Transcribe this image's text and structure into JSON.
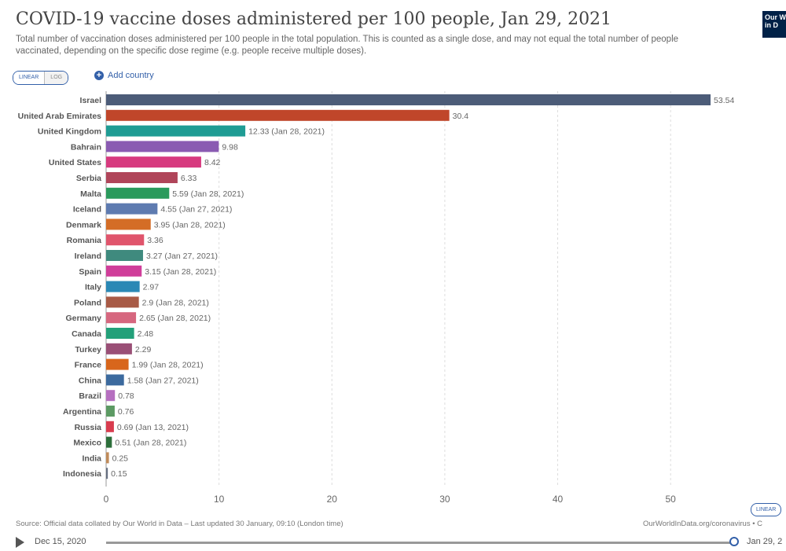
{
  "header": {
    "title": "COVID-19 vaccine doses administered per 100 people, Jan 29, 2021",
    "subtitle": "Total number of vaccination doses administered per 100 people in the total population. This is counted as a single dose, and may not equal the total number of people vaccinated, depending on the specific dose regime (e.g. people receive multiple doses).",
    "logo_line1": "Our W",
    "logo_line2": "in D"
  },
  "controls": {
    "linear_label": "LINEAR",
    "log_label": "LOG",
    "add_country_label": "Add country",
    "scale_button_label": "LINEAR"
  },
  "footer": {
    "source": "Source: Official data collated by Our World in Data – Last updated 30 January, 09:10 (London time)",
    "link": "OurWorldInData.org/coronavirus • C"
  },
  "timeline": {
    "start_date": "Dec 15, 2020",
    "end_date": "Jan 29, 2",
    "position": 1.0
  },
  "chart_data": {
    "type": "bar",
    "orientation": "horizontal",
    "xlim": [
      0,
      55
    ],
    "x_ticks": [
      0,
      10,
      20,
      30,
      40,
      50
    ],
    "grid": true,
    "categories": [
      "Israel",
      "United Arab Emirates",
      "United Kingdom",
      "Bahrain",
      "United States",
      "Serbia",
      "Malta",
      "Iceland",
      "Denmark",
      "Romania",
      "Ireland",
      "Spain",
      "Italy",
      "Poland",
      "Germany",
      "Canada",
      "Turkey",
      "France",
      "China",
      "Brazil",
      "Argentina",
      "Russia",
      "Mexico",
      "India",
      "Indonesia"
    ],
    "values": [
      53.54,
      30.4,
      12.33,
      9.98,
      8.42,
      6.33,
      5.59,
      4.55,
      3.95,
      3.36,
      3.27,
      3.15,
      2.97,
      2.9,
      2.65,
      2.48,
      2.29,
      1.99,
      1.58,
      0.78,
      0.76,
      0.69,
      0.51,
      0.25,
      0.15
    ],
    "value_labels": [
      "53.54",
      "30.4",
      "12.33 (Jan 28, 2021)",
      "9.98",
      "8.42",
      "6.33",
      "5.59 (Jan 28, 2021)",
      "4.55 (Jan 27, 2021)",
      "3.95 (Jan 28, 2021)",
      "3.36",
      "3.27 (Jan 27, 2021)",
      "3.15 (Jan 28, 2021)",
      "2.97",
      "2.9 (Jan 28, 2021)",
      "2.65 (Jan 28, 2021)",
      "2.48",
      "2.29",
      "1.99 (Jan 28, 2021)",
      "1.58 (Jan 27, 2021)",
      "0.78",
      "0.76",
      "0.69 (Jan 13, 2021)",
      "0.51 (Jan 28, 2021)",
      "0.25",
      "0.15"
    ],
    "colors": [
      "#4c5c78",
      "#c0462a",
      "#1f9c94",
      "#8a5bb2",
      "#d73a7f",
      "#b0455a",
      "#2a9a5c",
      "#5e7bb0",
      "#d46d26",
      "#e0556c",
      "#3f8a7e",
      "#d03e9a",
      "#2a88b5",
      "#a85a45",
      "#d6677f",
      "#23a079",
      "#9a4f76",
      "#d8661c",
      "#3c6a9e",
      "#b66fc0",
      "#5c9a63",
      "#d83c4e",
      "#2c6e3a",
      "#c08b5a",
      "#666f80"
    ]
  }
}
